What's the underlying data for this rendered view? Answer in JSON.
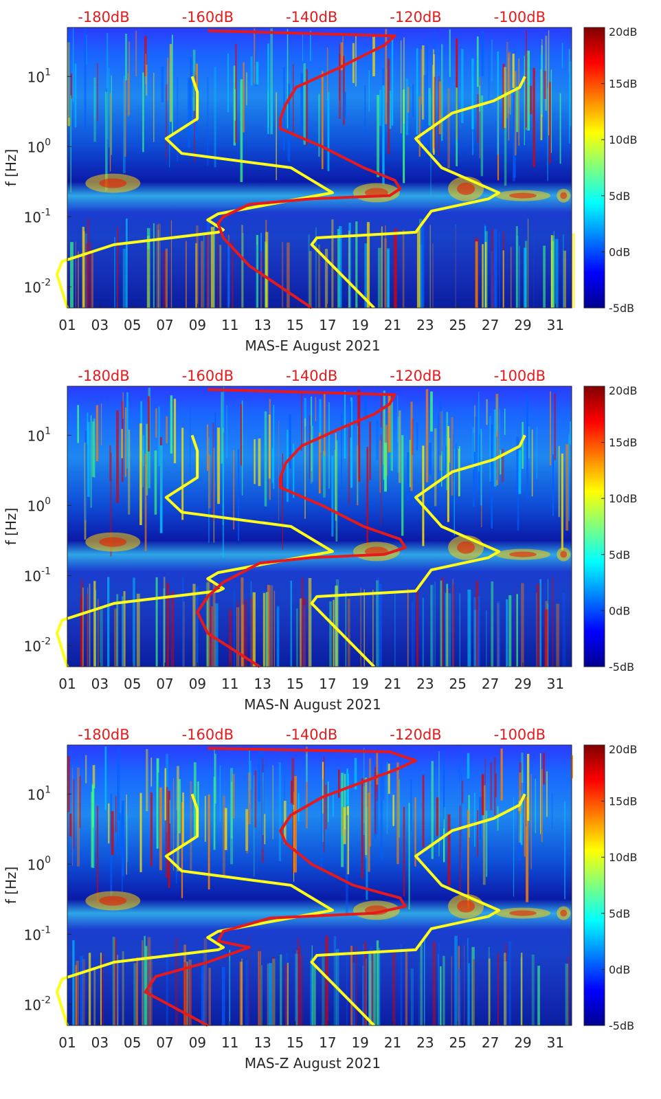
{
  "chart_data": [
    {
      "type": "heatmap",
      "title": "",
      "xlabel": "MAS-E August 2021",
      "ylabel": "f [Hz]",
      "x_ticks": [
        "01",
        "03",
        "05",
        "07",
        "09",
        "11",
        "13",
        "15",
        "17",
        "19",
        "21",
        "23",
        "25",
        "27",
        "29",
        "31"
      ],
      "y_ticks": [
        "10^-2",
        "10^-1",
        "10^0",
        "10^1"
      ],
      "top_ticks": [
        "-180dB",
        "-160dB",
        "-140dB",
        "-120dB",
        "-100dB"
      ],
      "colorbar_ticks": [
        "20dB",
        "15dB",
        "10dB",
        "5dB",
        "0dB",
        "-5dB"
      ],
      "xlim": [
        1,
        32
      ],
      "ylim_hz": [
        0.005,
        50
      ],
      "top_lim_db": [
        -187,
        -90
      ],
      "colorbar_lim_db": [
        -5,
        20
      ],
      "series": [
        {
          "name": "yellow-low-noise-model",
          "color": "#ffff1a",
          "points_db_hz": [
            [
              -187,
              0.005
            ],
            [
              -189,
              0.015
            ],
            [
              -188,
              0.023
            ],
            [
              -178,
              0.04
            ],
            [
              -158,
              0.06
            ],
            [
              -157,
              0.065
            ],
            [
              -160,
              0.09
            ],
            [
              -158,
              0.11
            ],
            [
              -136,
              0.22
            ],
            [
              -144,
              0.5
            ],
            [
              -165,
              0.8
            ],
            [
              -168,
              1.3
            ],
            [
              -162,
              2.5
            ],
            [
              -162,
              6
            ],
            [
              -163,
              10
            ]
          ]
        },
        {
          "name": "red-noise-level",
          "color": "#e41a1c",
          "points_db_hz": [
            [
              -140,
              0.005
            ],
            [
              -152,
              0.02
            ],
            [
              -157,
              0.05
            ],
            [
              -158,
              0.08
            ],
            [
              -157,
              0.1
            ],
            [
              -152,
              0.15
            ],
            [
              -140,
              0.18
            ],
            [
              -125,
              0.2
            ],
            [
              -123,
              0.25
            ],
            [
              -124,
              0.33
            ],
            [
              -130,
              0.5
            ],
            [
              -138,
              1
            ],
            [
              -146,
              1.8
            ],
            [
              -146,
              2.5
            ],
            [
              -145,
              4
            ],
            [
              -143,
              7
            ],
            [
              -135,
              13
            ],
            [
              -130,
              20
            ],
            [
              -126,
              28
            ],
            [
              -124,
              38
            ],
            [
              -160,
              45
            ]
          ]
        },
        {
          "name": "yellow-high-noise-model",
          "color": "#ffff1a",
          "points_db_hz": [
            [
              -128,
              0.005
            ],
            [
              -140,
              0.04
            ],
            [
              -139,
              0.05
            ],
            [
              -120,
              0.06
            ],
            [
              -117,
              0.12
            ],
            [
              -106,
              0.18
            ],
            [
              -104,
              0.22
            ],
            [
              -115,
              0.5
            ],
            [
              -120,
              1.3
            ],
            [
              -113,
              3
            ],
            [
              -105,
              4.5
            ],
            [
              -100,
              7
            ],
            [
              -99,
              10
            ]
          ]
        }
      ]
    },
    {
      "type": "heatmap",
      "title": "",
      "xlabel": "MAS-N August 2021",
      "ylabel": "f [Hz]",
      "x_ticks": [
        "01",
        "03",
        "05",
        "07",
        "09",
        "11",
        "13",
        "15",
        "17",
        "19",
        "21",
        "23",
        "25",
        "27",
        "29",
        "31"
      ],
      "y_ticks": [
        "10^-2",
        "10^-1",
        "10^0",
        "10^1"
      ],
      "top_ticks": [
        "-180dB",
        "-160dB",
        "-140dB",
        "-120dB",
        "-100dB"
      ],
      "colorbar_ticks": [
        "20dB",
        "15dB",
        "10dB",
        "5dB",
        "0dB",
        "-5dB"
      ],
      "xlim": [
        1,
        32
      ],
      "ylim_hz": [
        0.005,
        50
      ],
      "top_lim_db": [
        -187,
        -90
      ],
      "colorbar_lim_db": [
        -5,
        20
      ],
      "series": [
        {
          "name": "yellow-low-noise-model",
          "color": "#ffff1a",
          "points_db_hz": [
            [
              -187,
              0.005
            ],
            [
              -189,
              0.015
            ],
            [
              -188,
              0.023
            ],
            [
              -178,
              0.04
            ],
            [
              -158,
              0.06
            ],
            [
              -157,
              0.065
            ],
            [
              -160,
              0.09
            ],
            [
              -158,
              0.11
            ],
            [
              -136,
              0.22
            ],
            [
              -144,
              0.5
            ],
            [
              -165,
              0.8
            ],
            [
              -168,
              1.3
            ],
            [
              -162,
              2.5
            ],
            [
              -162,
              6
            ],
            [
              -163,
              10
            ]
          ]
        },
        {
          "name": "red-noise-level",
          "color": "#e41a1c",
          "points_db_hz": [
            [
              -150,
              0.005
            ],
            [
              -160,
              0.015
            ],
            [
              -162,
              0.03
            ],
            [
              -160,
              0.05
            ],
            [
              -157,
              0.08
            ],
            [
              -150,
              0.15
            ],
            [
              -140,
              0.18
            ],
            [
              -126,
              0.2
            ],
            [
              -122,
              0.25
            ],
            [
              -123,
              0.33
            ],
            [
              -130,
              0.5
            ],
            [
              -138,
              1
            ],
            [
              -146,
              1.8
            ],
            [
              -146,
              2.5
            ],
            [
              -145,
              4
            ],
            [
              -142,
              7
            ],
            [
              -134,
              13
            ],
            [
              -128,
              20
            ],
            [
              -125,
              28
            ],
            [
              -124,
              38
            ],
            [
              -160,
              45
            ]
          ]
        },
        {
          "name": "yellow-high-noise-model",
          "color": "#ffff1a",
          "points_db_hz": [
            [
              -128,
              0.005
            ],
            [
              -140,
              0.04
            ],
            [
              -139,
              0.05
            ],
            [
              -120,
              0.06
            ],
            [
              -117,
              0.12
            ],
            [
              -106,
              0.18
            ],
            [
              -104,
              0.22
            ],
            [
              -115,
              0.5
            ],
            [
              -120,
              1.3
            ],
            [
              -113,
              3
            ],
            [
              -105,
              4.5
            ],
            [
              -100,
              7
            ],
            [
              -99,
              10
            ]
          ]
        }
      ]
    },
    {
      "type": "heatmap",
      "title": "",
      "xlabel": "MAS-Z August 2021",
      "ylabel": "f [Hz]",
      "x_ticks": [
        "01",
        "03",
        "05",
        "07",
        "09",
        "11",
        "13",
        "15",
        "17",
        "19",
        "21",
        "23",
        "25",
        "27",
        "29",
        "31"
      ],
      "y_ticks": [
        "10^-2",
        "10^-1",
        "10^0",
        "10^1"
      ],
      "top_ticks": [
        "-180dB",
        "-160dB",
        "-140dB",
        "-120dB",
        "-100dB"
      ],
      "colorbar_ticks": [
        "20dB",
        "15dB",
        "10dB",
        "5dB",
        "0dB",
        "-5dB"
      ],
      "xlim": [
        1,
        32
      ],
      "ylim_hz": [
        0.005,
        50
      ],
      "top_lim_db": [
        -187,
        -90
      ],
      "colorbar_lim_db": [
        -5,
        20
      ],
      "series": [
        {
          "name": "yellow-low-noise-model",
          "color": "#ffff1a",
          "points_db_hz": [
            [
              -187,
              0.005
            ],
            [
              -189,
              0.015
            ],
            [
              -188,
              0.023
            ],
            [
              -178,
              0.04
            ],
            [
              -158,
              0.06
            ],
            [
              -157,
              0.065
            ],
            [
              -160,
              0.09
            ],
            [
              -158,
              0.11
            ],
            [
              -136,
              0.22
            ],
            [
              -144,
              0.5
            ],
            [
              -165,
              0.8
            ],
            [
              -168,
              1.3
            ],
            [
              -162,
              2.5
            ],
            [
              -162,
              6
            ],
            [
              -163,
              10
            ]
          ]
        },
        {
          "name": "red-noise-level",
          "color": "#e41a1c",
          "points_db_hz": [
            [
              -160,
              0.005
            ],
            [
              -172,
              0.015
            ],
            [
              -170,
              0.025
            ],
            [
              -160,
              0.04
            ],
            [
              -152,
              0.065
            ],
            [
              -158,
              0.08
            ],
            [
              -157,
              0.11
            ],
            [
              -148,
              0.17
            ],
            [
              -128,
              0.2
            ],
            [
              -122,
              0.25
            ],
            [
              -123,
              0.33
            ],
            [
              -132,
              0.5
            ],
            [
              -140,
              1
            ],
            [
              -145,
              2
            ],
            [
              -146,
              3
            ],
            [
              -144,
              5
            ],
            [
              -138,
              9
            ],
            [
              -130,
              15
            ],
            [
              -124,
              22
            ],
            [
              -120,
              30
            ],
            [
              -125,
              40
            ],
            [
              -160,
              45
            ]
          ]
        },
        {
          "name": "yellow-high-noise-model",
          "color": "#ffff1a",
          "points_db_hz": [
            [
              -128,
              0.005
            ],
            [
              -140,
              0.04
            ],
            [
              -139,
              0.05
            ],
            [
              -120,
              0.06
            ],
            [
              -117,
              0.12
            ],
            [
              -106,
              0.18
            ],
            [
              -104,
              0.22
            ],
            [
              -115,
              0.5
            ],
            [
              -120,
              1.3
            ],
            [
              -113,
              3
            ],
            [
              -105,
              4.5
            ],
            [
              -100,
              7
            ],
            [
              -99,
              10
            ]
          ]
        }
      ]
    }
  ]
}
